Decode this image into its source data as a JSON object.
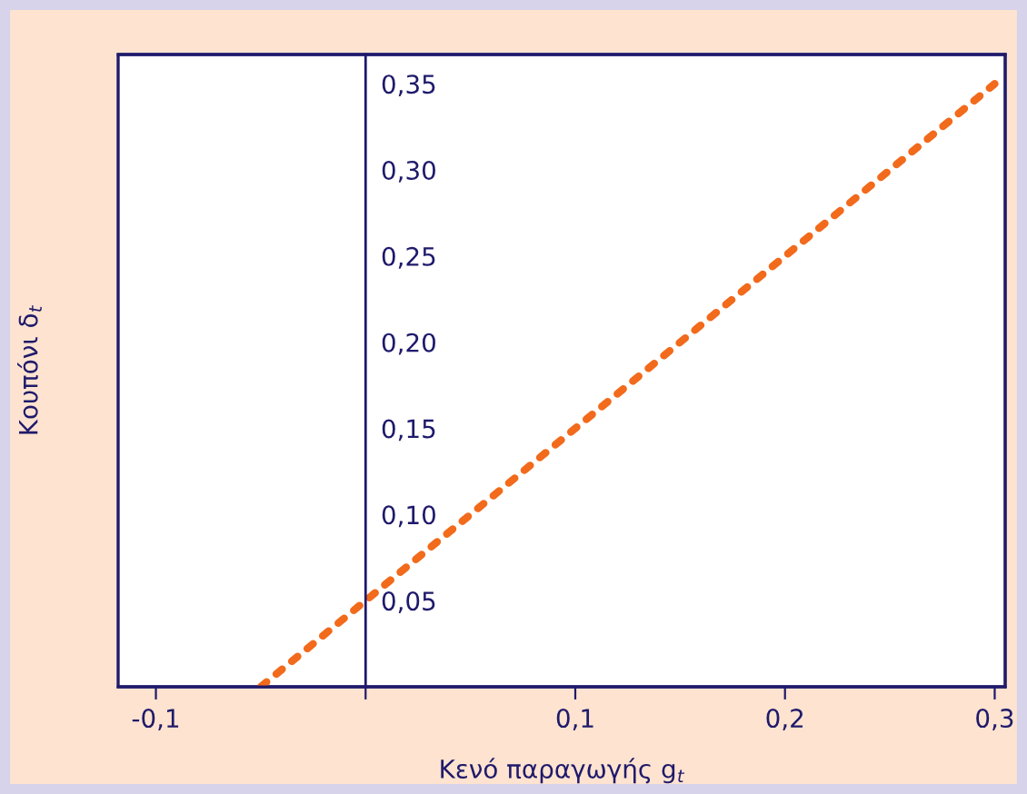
{
  "chart_data": {
    "type": "line",
    "xlabel": "Κενό παραγωγής g$_{t}$",
    "ylabel": "Κουπόνι δ$_{t}$",
    "series": [
      {
        "color": "#f26a1b",
        "x": [
          -0.05,
          0.3
        ],
        "values": [
          0,
          0.35
        ]
      }
    ],
    "xlim": [
      -0.118,
      0.305
    ],
    "ylim": [
      0,
      0.367
    ],
    "xticks": [
      {
        "value": -0.1,
        "label": "-0,1"
      },
      {
        "value": 0,
        "label": null
      },
      {
        "value": 0.1,
        "label": "0,1"
      },
      {
        "value": 0.2,
        "label": "0,2"
      },
      {
        "value": 0.3,
        "label": "0,3"
      }
    ],
    "yticks": [
      {
        "value": 0.05,
        "label": "0,05"
      },
      {
        "value": 0.1,
        "label": "0,10"
      },
      {
        "value": 0.15,
        "label": "0,15"
      },
      {
        "value": 0.2,
        "label": "0,20"
      },
      {
        "value": 0.25,
        "label": "0,25"
      },
      {
        "value": 0.3,
        "label": "0,30"
      },
      {
        "value": 0.35,
        "label": "0,35"
      }
    ],
    "line_style": "dotted",
    "marker": "none",
    "grid": false,
    "legend": false
  }
}
